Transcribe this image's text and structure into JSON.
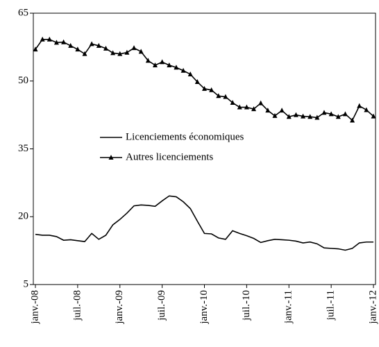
{
  "chart_data": {
    "type": "line",
    "categories": [
      "janv.-08",
      null,
      null,
      null,
      null,
      null,
      "juil.-08",
      null,
      null,
      null,
      null,
      null,
      "janv.-09",
      null,
      null,
      null,
      null,
      null,
      "juil.-09",
      null,
      null,
      null,
      null,
      null,
      "janv.-10",
      null,
      null,
      null,
      null,
      null,
      "juil.-10",
      null,
      null,
      null,
      null,
      null,
      "janv.-11",
      null,
      null,
      null,
      null,
      null,
      "juil.-11",
      null,
      null,
      null,
      null,
      null,
      "janv.-12"
    ],
    "series": [
      {
        "name": "Licenciements économiques",
        "color": "#000000",
        "marker": "none",
        "values": [
          16.1,
          15.9,
          15.9,
          15.6,
          14.8,
          14.9,
          14.7,
          14.5,
          16.3,
          15.0,
          15.9,
          18.2,
          19.4,
          20.8,
          22.4,
          22.6,
          22.5,
          22.3,
          23.5,
          24.6,
          24.4,
          23.3,
          21.8,
          19.0,
          16.3,
          16.2,
          15.3,
          15.0,
          16.9,
          16.3,
          15.8,
          15.2,
          14.3,
          14.7,
          15.0,
          14.9,
          14.8,
          14.6,
          14.2,
          14.4,
          14.0,
          13.1,
          13.0,
          12.9,
          12.6,
          13.0,
          14.2,
          14.4,
          14.4
        ]
      },
      {
        "name": "Autres licenciements",
        "color": "#000000",
        "marker": "triangle",
        "values": [
          57,
          59.2,
          59.2,
          58.5,
          58.6,
          57.8,
          57,
          56,
          58.2,
          57.8,
          57.2,
          56.2,
          56,
          56.3,
          57.3,
          56.5,
          54.5,
          53.5,
          54.2,
          53.5,
          53,
          52.3,
          51.5,
          49.8,
          48.3,
          48,
          46.7,
          46.5,
          45.2,
          44.2,
          44.2,
          43.8,
          45.1,
          43.5,
          42.3,
          43.5,
          42.1,
          42.5,
          42.2,
          42.1,
          41.9,
          43,
          42.7,
          42.1,
          42.7,
          41.3,
          44.5,
          43.6,
          42.2
        ]
      }
    ],
    "ylim": [
      5,
      65
    ],
    "yticks": [
      5,
      20,
      35,
      50,
      65
    ],
    "grid": false,
    "legend": "center-left"
  }
}
